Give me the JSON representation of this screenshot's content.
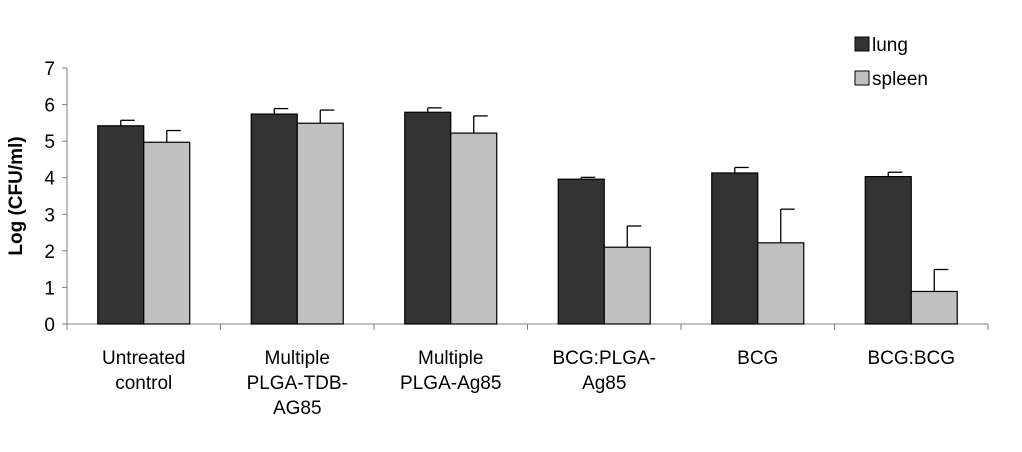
{
  "chart_data": {
    "type": "bar",
    "ylabel": "Log (CFU/ml)",
    "xlabel": "",
    "ylim": [
      0,
      7
    ],
    "yticks": [
      "0",
      "1",
      "2",
      "3",
      "4",
      "5",
      "6",
      "7"
    ],
    "grid": false,
    "legend_position": "top-right",
    "categories": [
      [
        "Untreated",
        "control"
      ],
      [
        "Multiple",
        "PLGA-TDB-",
        "AG85"
      ],
      [
        "Multiple",
        "PLGA-Ag85"
      ],
      [
        "BCG:PLGA-",
        "Ag85"
      ],
      [
        "BCG"
      ],
      [
        "BCG:BCG"
      ]
    ],
    "series": [
      {
        "name": "lung",
        "color": "#333333",
        "values": [
          5.42,
          5.74,
          5.79,
          3.96,
          4.13,
          4.03
        ],
        "errors": [
          0.15,
          0.15,
          0.12,
          0.05,
          0.15,
          0.12
        ]
      },
      {
        "name": "spleen",
        "color": "#c0c0c0",
        "values": [
          4.97,
          5.49,
          5.22,
          2.1,
          2.22,
          0.89
        ],
        "errors": [
          0.32,
          0.36,
          0.47,
          0.58,
          0.92,
          0.6
        ]
      }
    ]
  }
}
